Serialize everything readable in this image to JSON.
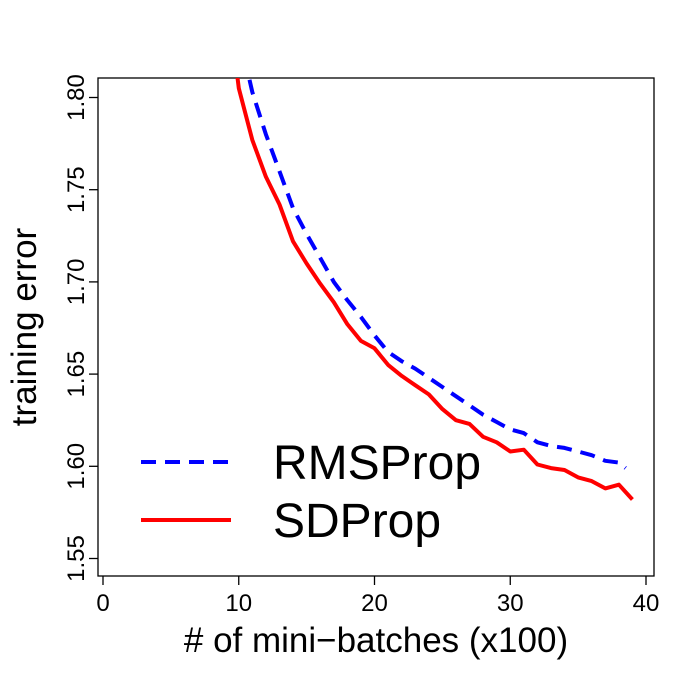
{
  "chart_data": {
    "type": "line",
    "title": "",
    "xlabel": "# of mini−batches (x100)",
    "ylabel": "training error",
    "xlim": [
      0,
      40
    ],
    "ylim": [
      1.545,
      1.8
    ],
    "x_ticks": [
      0,
      10,
      20,
      30,
      40
    ],
    "y_ticks": [
      1.55,
      1.6,
      1.65,
      1.7,
      1.75,
      1.8
    ],
    "x_tick_labels": [
      "0",
      "10",
      "20",
      "30",
      "40"
    ],
    "y_tick_labels": [
      "1.55",
      "1.60",
      "1.65",
      "1.70",
      "1.75",
      "1.80"
    ],
    "grid": false,
    "legend_position": "bottom-left",
    "series": [
      {
        "name": "RMSProp",
        "color": "#0000ff",
        "style": "dashed",
        "points": [
          [
            10,
            1.835
          ],
          [
            11,
            1.803
          ],
          [
            12,
            1.78
          ],
          [
            13,
            1.76
          ],
          [
            14,
            1.74
          ],
          [
            15,
            1.726
          ],
          [
            16,
            1.713
          ],
          [
            17,
            1.7
          ],
          [
            18,
            1.69
          ],
          [
            19,
            1.681
          ],
          [
            20,
            1.671
          ],
          [
            21,
            1.662
          ],
          [
            22,
            1.657
          ],
          [
            23,
            1.653
          ],
          [
            24,
            1.648
          ],
          [
            25,
            1.643
          ],
          [
            26,
            1.638
          ],
          [
            27,
            1.633
          ],
          [
            28,
            1.628
          ],
          [
            29,
            1.624
          ],
          [
            30,
            1.62
          ],
          [
            31,
            1.618
          ],
          [
            32,
            1.613
          ],
          [
            33,
            1.611
          ],
          [
            34,
            1.61
          ],
          [
            35,
            1.608
          ],
          [
            36,
            1.606
          ],
          [
            37,
            1.603
          ],
          [
            38,
            1.602
          ],
          [
            38.5,
            1.599
          ]
        ]
      },
      {
        "name": "SDProp",
        "color": "#ff0000",
        "style": "solid",
        "points": [
          [
            9.5,
            1.835
          ],
          [
            10,
            1.805
          ],
          [
            11,
            1.777
          ],
          [
            12,
            1.757
          ],
          [
            13,
            1.742
          ],
          [
            14,
            1.722
          ],
          [
            15,
            1.71
          ],
          [
            16,
            1.699
          ],
          [
            17,
            1.689
          ],
          [
            18,
            1.677
          ],
          [
            19,
            1.668
          ],
          [
            20,
            1.664
          ],
          [
            21,
            1.655
          ],
          [
            22,
            1.649
          ],
          [
            23,
            1.644
          ],
          [
            24,
            1.639
          ],
          [
            25,
            1.631
          ],
          [
            26,
            1.625
          ],
          [
            27,
            1.623
          ],
          [
            28,
            1.616
          ],
          [
            29,
            1.613
          ],
          [
            30,
            1.608
          ],
          [
            31,
            1.609
          ],
          [
            32,
            1.601
          ],
          [
            33,
            1.599
          ],
          [
            34,
            1.598
          ],
          [
            35,
            1.594
          ],
          [
            36,
            1.592
          ],
          [
            37,
            1.588
          ],
          [
            38,
            1.59
          ],
          [
            39,
            1.582
          ]
        ]
      }
    ]
  }
}
